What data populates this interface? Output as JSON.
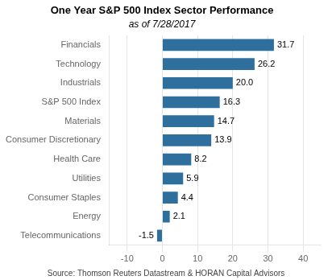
{
  "chart_data": {
    "type": "bar",
    "orientation": "horizontal",
    "title": "One Year S&P 500 Index Sector Performance",
    "subtitle": "as of 7/28/2017",
    "source": "Source: Thomson Reuters Datastream & HORAN Capital Advisors",
    "categories": [
      "Telecommunications",
      "Energy",
      "Consumer Staples",
      "Utilities",
      "Health Care",
      "Consumer Discretionary",
      "Materials",
      "S&P 500 Index",
      "Industrials",
      "Technology",
      "Financials"
    ],
    "values": [
      -1.5,
      2.1,
      4.4,
      5.9,
      8.2,
      13.9,
      14.7,
      16.3,
      20.0,
      26.2,
      31.7
    ],
    "value_labels": [
      "-1.5",
      "2.1",
      "4.4",
      "5.9",
      "8.2",
      "13.9",
      "14.7",
      "16.3",
      "20.0",
      "26.2",
      "31.7"
    ],
    "color": "#2e6f9e",
    "xlim": [
      -15,
      45
    ],
    "xticks": [
      -10,
      0,
      10,
      20,
      30,
      40
    ],
    "grid": true,
    "data_labels": true
  }
}
